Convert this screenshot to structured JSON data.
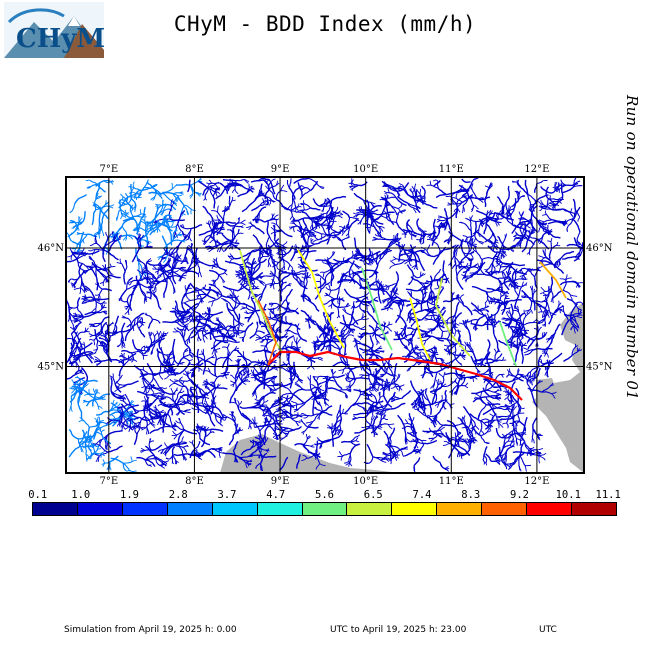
{
  "logo_text": "CHyM",
  "title": "CHyM - BDD Index (mm/h)",
  "side_note": "Run on operational domain number 01",
  "map": {
    "lon_labels": [
      "7°E",
      "8°E",
      "9°E",
      "10°E",
      "11°E",
      "12°E"
    ],
    "lat_labels": [
      "46°N",
      "45°N"
    ],
    "lon_values": [
      7,
      8,
      9,
      10,
      11,
      12
    ],
    "lat_values": [
      46,
      45
    ],
    "extent": {
      "lon_min": 6.5,
      "lon_max": 12.55,
      "lat_min": 44.1,
      "lat_max": 46.6
    },
    "river_color_low": "#0000cc",
    "land_color": "#ffffff",
    "sea_color": "#b4b4b4"
  },
  "colorbar": {
    "ticks": [
      "0.1",
      "1.0",
      "1.9",
      "2.8",
      "3.7",
      "4.7",
      "5.6",
      "6.5",
      "7.4",
      "8.3",
      "9.2",
      "10.1",
      "11.1"
    ],
    "colors": [
      "#000090",
      "#0000d8",
      "#0033ff",
      "#0080ff",
      "#00c8ff",
      "#20f0e0",
      "#70f080",
      "#c8f040",
      "#ffff00",
      "#ffb000",
      "#ff6000",
      "#ff0000",
      "#b00000"
    ]
  },
  "footer": {
    "left": "Simulation from April 19, 2025 h: 0.00",
    "middle": "UTC to April 19, 2025 h: 23.00",
    "right": "UTC"
  }
}
